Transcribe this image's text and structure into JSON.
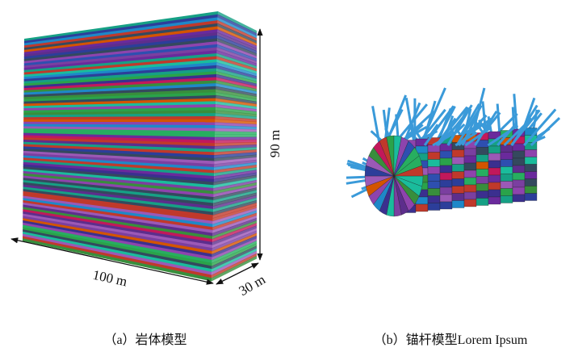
{
  "figure_a": {
    "dimensions": {
      "height": "90 m",
      "width": "100 m",
      "depth": "30 m"
    },
    "caption": "（a）岩体模型"
  },
  "figure_b": {
    "caption": "（b）锚杆模型Lorem Ipsum"
  }
}
